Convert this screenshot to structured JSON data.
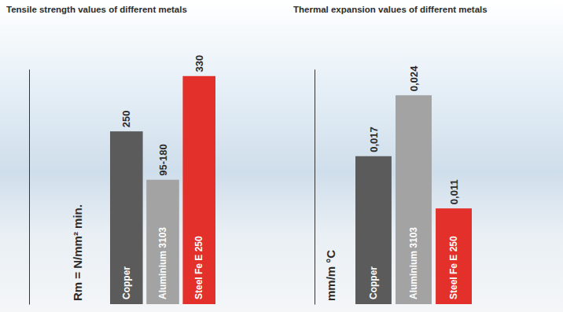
{
  "chart_data": [
    {
      "type": "bar",
      "title": "Tensile strength values of different metals",
      "y_label": "Rm = N/mm² min.",
      "categories": [
        "Copper",
        "Aluminium 3103",
        "Steel Fe E 250"
      ],
      "values": [
        250,
        180,
        330
      ],
      "value_labels": [
        "250",
        "95-180",
        "330"
      ],
      "colors": [
        "#5b5b5b",
        "#a3a3a3",
        "#e3302a"
      ],
      "ylim": [
        0,
        340
      ],
      "tick_labels": false,
      "data_labels": true
    },
    {
      "type": "bar",
      "title": "Thermal expansion values of different metals",
      "y_label": "mm/m °C",
      "categories": [
        "Copper",
        "Aluminium 3103",
        "Steel Fe E 250"
      ],
      "values": [
        0.017,
        0.024,
        0.011
      ],
      "value_labels": [
        "0,017",
        "0,024",
        "0,011"
      ],
      "colors": [
        "#5b5b5b",
        "#a3a3a3",
        "#e3302a"
      ],
      "ylim": [
        0,
        0.027
      ],
      "tick_labels": false,
      "data_labels": true
    }
  ]
}
